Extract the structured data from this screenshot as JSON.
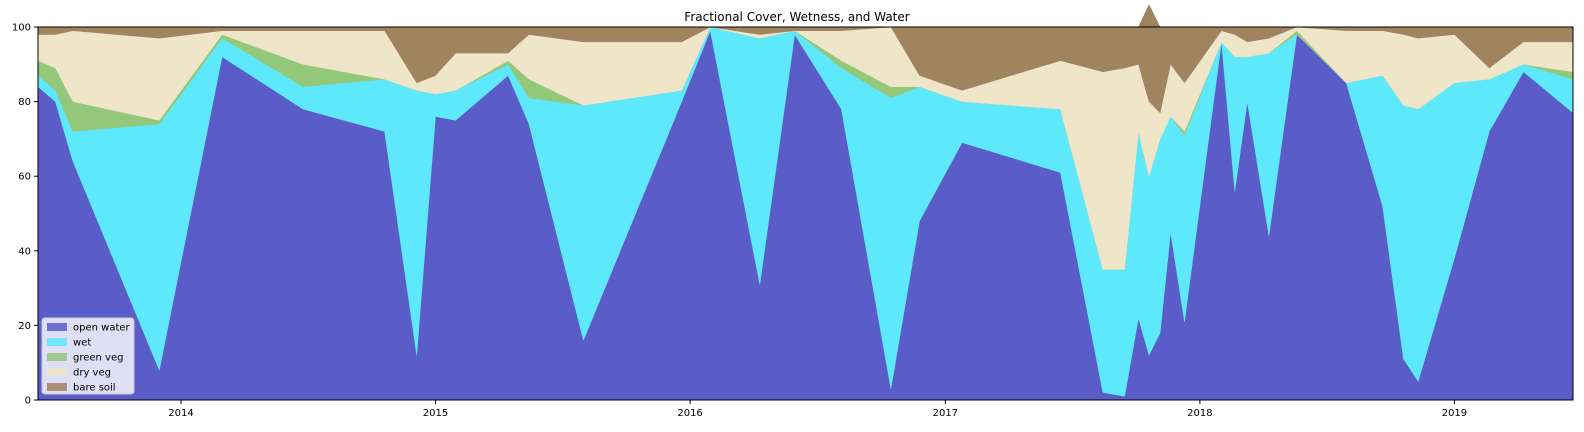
{
  "chart_data": {
    "type": "area",
    "title": "Fractional Cover, Wetness, and Water",
    "xlabel": "",
    "ylabel": "",
    "ylim": [
      0,
      100
    ],
    "xlim": [
      "2013-06-10",
      "2019-06-20"
    ],
    "x_ticks": [
      "2014",
      "2015",
      "2016",
      "2017",
      "2018",
      "2019"
    ],
    "y_ticks": [
      "0",
      "20",
      "40",
      "60",
      "80",
      "100"
    ],
    "legend_position": "lower-left",
    "grid": false,
    "stacked": true,
    "x": [
      "2013-06-10",
      "2013-07-05",
      "2013-07-30",
      "2013-12-01",
      "2014-03-01",
      "2014-06-25",
      "2014-10-20",
      "2014-12-05",
      "2015-01-01",
      "2015-01-30",
      "2015-04-15",
      "2015-05-15",
      "2015-08-01",
      "2015-12-20",
      "2016-01-30",
      "2016-04-10",
      "2016-05-30",
      "2016-08-05",
      "2016-10-15",
      "2016-11-25",
      "2017-01-25",
      "2017-06-15",
      "2017-08-15",
      "2017-09-15",
      "2017-10-05",
      "2017-10-20",
      "2017-11-05",
      "2017-11-20",
      "2017-12-10",
      "2018-02-01",
      "2018-02-20",
      "2018-03-10",
      "2018-04-10",
      "2018-05-20",
      "2018-07-30",
      "2018-09-20",
      "2018-10-20",
      "2018-11-10",
      "2019-01-01",
      "2019-02-20",
      "2019-04-10",
      "2019-06-20"
    ],
    "series": [
      {
        "name": "open water",
        "color": "#5a5dc8",
        "values": [
          84,
          80,
          64,
          8,
          92,
          78,
          72,
          12,
          76,
          75,
          87,
          74,
          16,
          80,
          99,
          31,
          98,
          78,
          3,
          48,
          69,
          61,
          2,
          1,
          22,
          12,
          18,
          45,
          21,
          96,
          56,
          80,
          44,
          98,
          85,
          52,
          11,
          5,
          38,
          72,
          88,
          77
        ]
      },
      {
        "name": "wet",
        "color": "#5ee8fc",
        "values": [
          3,
          3,
          8,
          66,
          5,
          6,
          14,
          71,
          6,
          8,
          3,
          7,
          63,
          3,
          1,
          66,
          1,
          11,
          78,
          36,
          11,
          17,
          33,
          34,
          50,
          48,
          52,
          31,
          50,
          0,
          36,
          12,
          49,
          0,
          0,
          35,
          68,
          73,
          47,
          14,
          2,
          9
        ]
      },
      {
        "name": "green veg",
        "color": "#93c87a",
        "values": [
          4,
          6,
          8,
          1,
          1,
          6,
          0,
          0,
          0,
          0,
          1,
          5,
          0,
          0,
          0,
          0,
          0,
          2,
          3,
          0,
          0,
          0,
          0,
          0,
          0,
          0,
          0,
          0,
          1,
          0,
          0,
          0,
          0,
          1,
          0,
          0,
          0,
          0,
          0,
          0,
          0,
          2
        ]
      },
      {
        "name": "dry veg",
        "color": "#efe5c8",
        "values": [
          7,
          9,
          19,
          22,
          1,
          9,
          13,
          2,
          5,
          10,
          2,
          12,
          17,
          13,
          0,
          1,
          0,
          8,
          16,
          3,
          3,
          13,
          53,
          54,
          18,
          20,
          7,
          14,
          13,
          3,
          6,
          4,
          4,
          1,
          14,
          12,
          19,
          19,
          13,
          3,
          6,
          8
        ]
      },
      {
        "name": "bare soil",
        "color": "#a0845f",
        "values": [
          2,
          2,
          1,
          3,
          1,
          1,
          1,
          15,
          13,
          7,
          7,
          2,
          4,
          4,
          0,
          2,
          1,
          1,
          0,
          13,
          17,
          9,
          12,
          11,
          10,
          26,
          23,
          10,
          15,
          1,
          2,
          4,
          3,
          0,
          1,
          1,
          2,
          3,
          2,
          11,
          4,
          4
        ]
      }
    ]
  }
}
